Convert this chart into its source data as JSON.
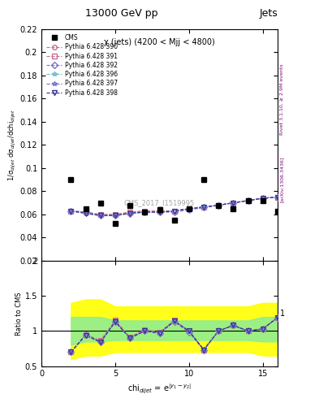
{
  "title_top": "13000 GeV pp",
  "title_right": "Jets",
  "annotation": "χ (jets) (4200 < Mjj < 4800)",
  "cms_label": "CMS_2017_I1519995",
  "xlabel": "chi$_{dijet}$ = e$^{|y_1 - y_2|}$",
  "ylabel_main": "1/σ$_{dijet}$ dσ$_{dijet}$/dchi$_{dijet}$",
  "ylabel_ratio": "Ratio to CMS",
  "right_label_top": "Rivet 3.1.10, ≥ 2.9M events",
  "right_label_bot": "[arXiv:1306.3436]",
  "ylim_main": [
    0.02,
    0.22
  ],
  "ylim_ratio": [
    0.5,
    2.0
  ],
  "xlim": [
    1,
    16
  ],
  "cms_x": [
    2,
    3,
    4,
    5,
    6,
    7,
    8,
    9,
    10,
    11,
    12,
    13,
    14,
    15,
    16
  ],
  "cms_y": [
    0.09,
    0.065,
    0.07,
    0.052,
    0.068,
    0.062,
    0.064,
    0.055,
    0.065,
    0.09,
    0.068,
    0.065,
    0.072,
    0.072,
    0.063
  ],
  "pythia_x": [
    2,
    3,
    4,
    5,
    6,
    7,
    8,
    9,
    10,
    11,
    12,
    13,
    14,
    15,
    16
  ],
  "pythia390_y": [
    0.063,
    0.062,
    0.06,
    0.06,
    0.062,
    0.063,
    0.063,
    0.063,
    0.065,
    0.066,
    0.068,
    0.07,
    0.072,
    0.074,
    0.075
  ],
  "pythia391_y": [
    0.063,
    0.062,
    0.06,
    0.06,
    0.062,
    0.063,
    0.063,
    0.063,
    0.065,
    0.066,
    0.068,
    0.07,
    0.072,
    0.074,
    0.075
  ],
  "pythia392_y": [
    0.063,
    0.062,
    0.059,
    0.059,
    0.061,
    0.062,
    0.062,
    0.062,
    0.064,
    0.066,
    0.068,
    0.07,
    0.072,
    0.074,
    0.075
  ],
  "pythia396_y": [
    0.063,
    0.061,
    0.059,
    0.059,
    0.061,
    0.062,
    0.062,
    0.063,
    0.065,
    0.066,
    0.068,
    0.07,
    0.072,
    0.074,
    0.075
  ],
  "pythia397_y": [
    0.063,
    0.061,
    0.059,
    0.059,
    0.061,
    0.062,
    0.062,
    0.063,
    0.065,
    0.067,
    0.068,
    0.07,
    0.072,
    0.074,
    0.075
  ],
  "pythia398_y": [
    0.063,
    0.061,
    0.059,
    0.059,
    0.061,
    0.062,
    0.062,
    0.063,
    0.065,
    0.066,
    0.068,
    0.07,
    0.072,
    0.074,
    0.075
  ],
  "ratio390": [
    0.7,
    0.95,
    0.86,
    1.15,
    0.91,
    1.02,
    0.98,
    1.15,
    1.0,
    0.73,
    1.0,
    1.08,
    1.0,
    1.03,
    1.19
  ],
  "ratio391": [
    0.7,
    0.95,
    0.86,
    1.15,
    0.91,
    1.02,
    0.98,
    1.15,
    1.0,
    0.73,
    1.0,
    1.08,
    1.0,
    1.03,
    1.19
  ],
  "ratio392": [
    0.7,
    0.95,
    0.84,
    1.13,
    0.9,
    1.0,
    0.97,
    1.13,
    0.98,
    0.73,
    1.0,
    1.08,
    1.0,
    1.03,
    1.19
  ],
  "ratio396": [
    0.7,
    0.94,
    0.84,
    1.13,
    0.9,
    1.0,
    0.97,
    1.14,
    1.0,
    0.73,
    1.0,
    1.08,
    1.0,
    1.03,
    1.19
  ],
  "ratio397": [
    0.7,
    0.94,
    0.84,
    1.13,
    0.9,
    1.0,
    0.97,
    1.14,
    1.0,
    0.74,
    1.0,
    1.08,
    1.0,
    1.03,
    1.19
  ],
  "ratio398": [
    0.7,
    0.94,
    0.84,
    1.13,
    0.9,
    1.0,
    0.97,
    1.14,
    1.0,
    0.73,
    1.0,
    1.08,
    1.0,
    1.03,
    1.19
  ],
  "yellow_band_lo": [
    0.6,
    0.65,
    0.65,
    0.7,
    0.7,
    0.7,
    0.7,
    0.7,
    0.7,
    0.7,
    0.7,
    0.7,
    0.7,
    0.65,
    0.65
  ],
  "yellow_band_hi": [
    1.4,
    1.45,
    1.45,
    1.35,
    1.35,
    1.35,
    1.35,
    1.35,
    1.35,
    1.35,
    1.35,
    1.35,
    1.35,
    1.4,
    1.4
  ],
  "green_band_lo": [
    0.8,
    0.85,
    0.85,
    0.87,
    0.87,
    0.87,
    0.87,
    0.87,
    0.87,
    0.87,
    0.87,
    0.87,
    0.87,
    0.85,
    0.85
  ],
  "green_band_hi": [
    1.2,
    1.2,
    1.2,
    1.15,
    1.15,
    1.15,
    1.15,
    1.15,
    1.15,
    1.15,
    1.15,
    1.15,
    1.15,
    1.2,
    1.2
  ],
  "color390": "#c8699a",
  "color391": "#c87090",
  "color392": "#8070c8",
  "color396": "#70b8c8",
  "color397": "#7070c8",
  "color398": "#303090",
  "marker390": "o",
  "marker391": "s",
  "marker392": "D",
  "marker396": "*",
  "marker397": "*",
  "marker398": "v"
}
